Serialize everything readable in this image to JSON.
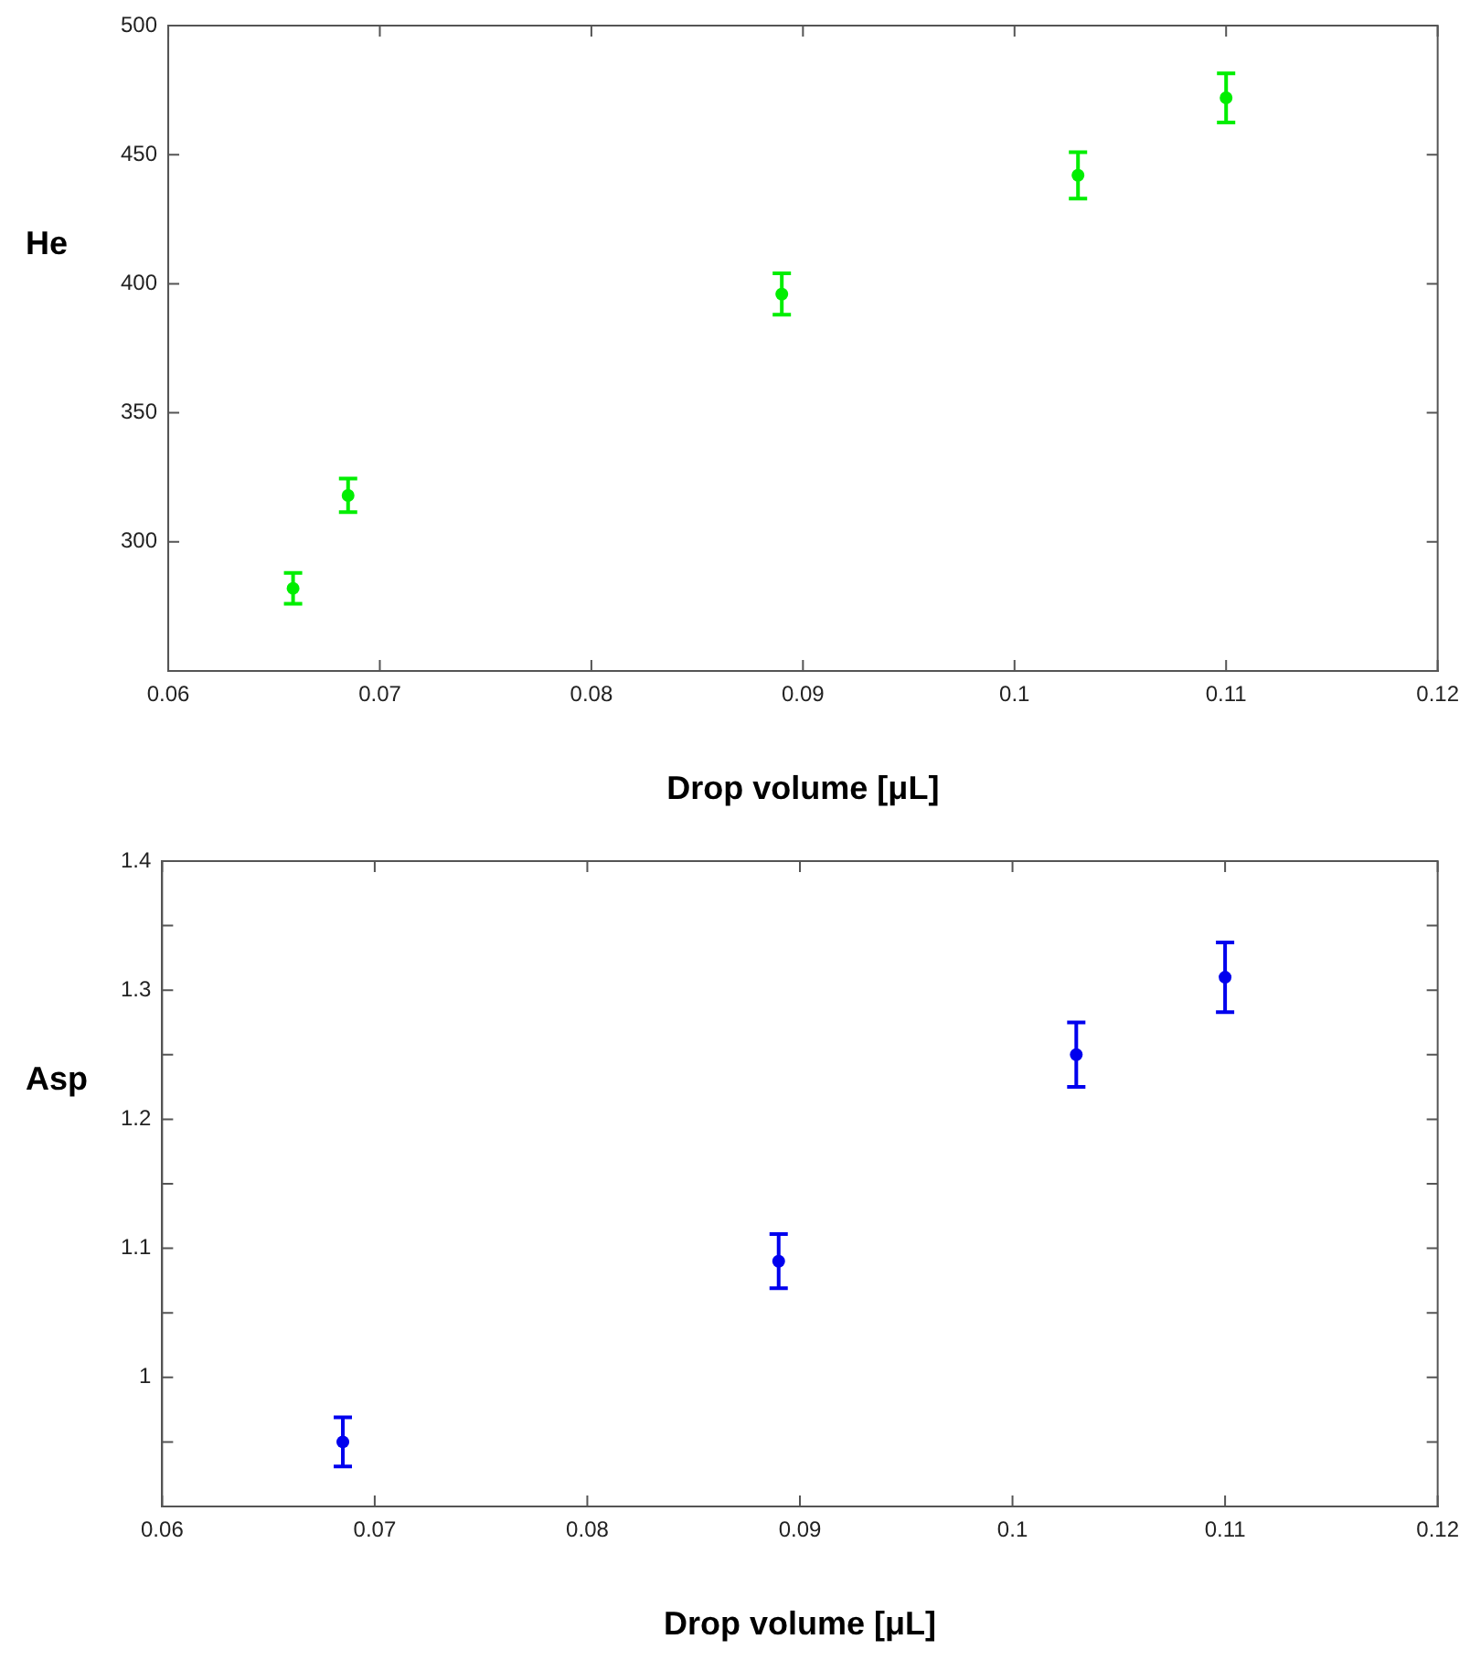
{
  "chart_data": [
    {
      "type": "scatter",
      "ylabel": "He",
      "xlabel": "Drop volume [μL]",
      "xlim": [
        0.06,
        0.12
      ],
      "xticks": [
        0.06,
        0.07,
        0.08,
        0.09,
        0.1,
        0.11,
        0.12
      ],
      "ylim": [
        250,
        500
      ],
      "yticks": [
        300,
        350,
        400,
        450,
        500
      ],
      "grid": false,
      "legend": false,
      "marker": "circle",
      "series": [
        {
          "color": "#00ee00",
          "x": [
            0.0659,
            0.0685,
            0.089,
            0.103,
            0.11
          ],
          "values": [
            282,
            318,
            396,
            442,
            472
          ],
          "errors": [
            6,
            6.5,
            8,
            9,
            9.5
          ]
        }
      ]
    },
    {
      "type": "scatter",
      "ylabel": "Asp",
      "xlabel": "Drop volume [μL]",
      "xlim": [
        0.06,
        0.12
      ],
      "xticks": [
        0.06,
        0.07,
        0.08,
        0.09,
        0.1,
        0.11,
        0.12
      ],
      "ylim": [
        0.9,
        1.4
      ],
      "yticks": [
        {
          "value": 0.95,
          "label": null
        },
        1,
        {
          "value": 1.05,
          "label": null
        },
        1.1,
        {
          "value": 1.15,
          "label": null
        },
        1.2,
        {
          "value": 1.25,
          "label": null
        },
        1.3,
        {
          "value": 1.35,
          "label": null
        },
        1.4
      ],
      "grid": false,
      "legend": false,
      "marker": "circle",
      "series": [
        {
          "color": "#0000ee",
          "x": [
            0.0685,
            0.089,
            0.103,
            0.11
          ],
          "values": [
            0.95,
            1.09,
            1.25,
            1.31
          ],
          "errors": [
            0.019,
            0.021,
            0.025,
            0.027
          ]
        }
      ]
    }
  ]
}
